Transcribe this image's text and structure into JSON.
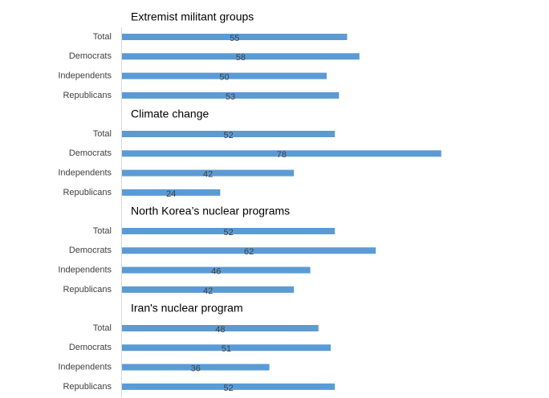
{
  "chart_data": {
    "type": "bar",
    "color": "#5b9bd5",
    "groups": [
      {
        "title": "Extremist militant groups",
        "categories": [
          "Total",
          "Democrats",
          "Independents",
          "Republicans"
        ],
        "values": [
          55,
          58,
          50,
          53
        ]
      },
      {
        "title": "Climate change",
        "categories": [
          "Total",
          "Democrats",
          "Independents",
          "Republicans"
        ],
        "values": [
          52,
          78,
          42,
          24
        ]
      },
      {
        "title": "North Korea’s nuclear programs",
        "categories": [
          "Total",
          "Democrats",
          "Independents",
          "Republicans"
        ],
        "values": [
          52,
          62,
          46,
          42
        ]
      },
      {
        "title": "Iran's nuclear program",
        "categories": [
          "Total",
          "Democrats",
          "Independents",
          "Republicans"
        ],
        "values": [
          48,
          51,
          36,
          52
        ]
      }
    ]
  }
}
